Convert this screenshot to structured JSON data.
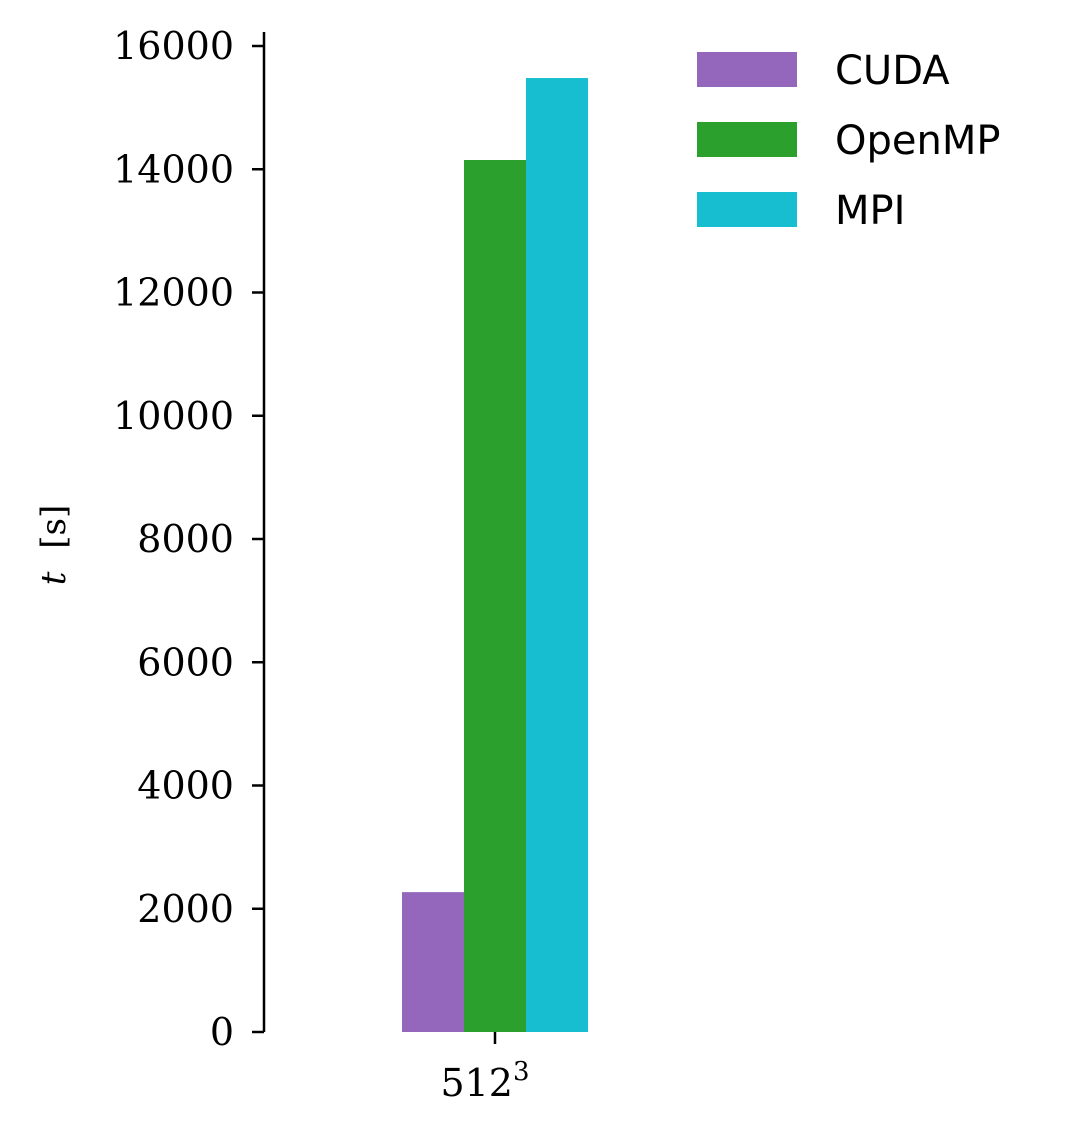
{
  "chart_data": {
    "type": "bar",
    "categories": [
      "512"
    ],
    "category_superscripts": [
      "3"
    ],
    "series": [
      {
        "name": "CUDA",
        "values": [
          2270
        ],
        "color": "#9467bd"
      },
      {
        "name": "OpenMP",
        "values": [
          14150
        ],
        "color": "#2ca02c"
      },
      {
        "name": "MPI",
        "values": [
          15480
        ],
        "color": "#17becf"
      }
    ],
    "title": "",
    "xlabel": "",
    "ylabel": "[s]",
    "ylabel_symbol": "t",
    "ylim": [
      0,
      16000
    ],
    "yticks": [
      "0",
      "2000",
      "4000",
      "6000",
      "8000",
      "10000",
      "12000",
      "14000",
      "16000"
    ],
    "grid": false,
    "legend_position": "top-right"
  }
}
